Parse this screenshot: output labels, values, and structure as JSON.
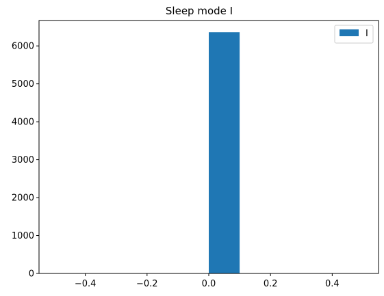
{
  "chart_data": {
    "type": "bar",
    "title": "Sleep mode I",
    "xlabel": "",
    "ylabel": "",
    "xlim": [
      -0.55,
      0.55
    ],
    "ylim": [
      0,
      6670
    ],
    "xticks": [
      -0.4,
      -0.2,
      0.0,
      0.2,
      0.4
    ],
    "xtick_labels": [
      "−0.4",
      "−0.2",
      "0.0",
      "0.2",
      "0.4"
    ],
    "yticks": [
      0,
      1000,
      2000,
      3000,
      4000,
      5000,
      6000
    ],
    "ytick_labels": [
      "0",
      "1000",
      "2000",
      "3000",
      "4000",
      "5000",
      "6000"
    ],
    "bars": [
      {
        "x0": 0.0,
        "x1": 0.1,
        "value": 6360
      }
    ],
    "series": [
      {
        "name": "I",
        "color": "#1f77b4"
      }
    ],
    "grid": false,
    "legend_position": "top-right"
  }
}
